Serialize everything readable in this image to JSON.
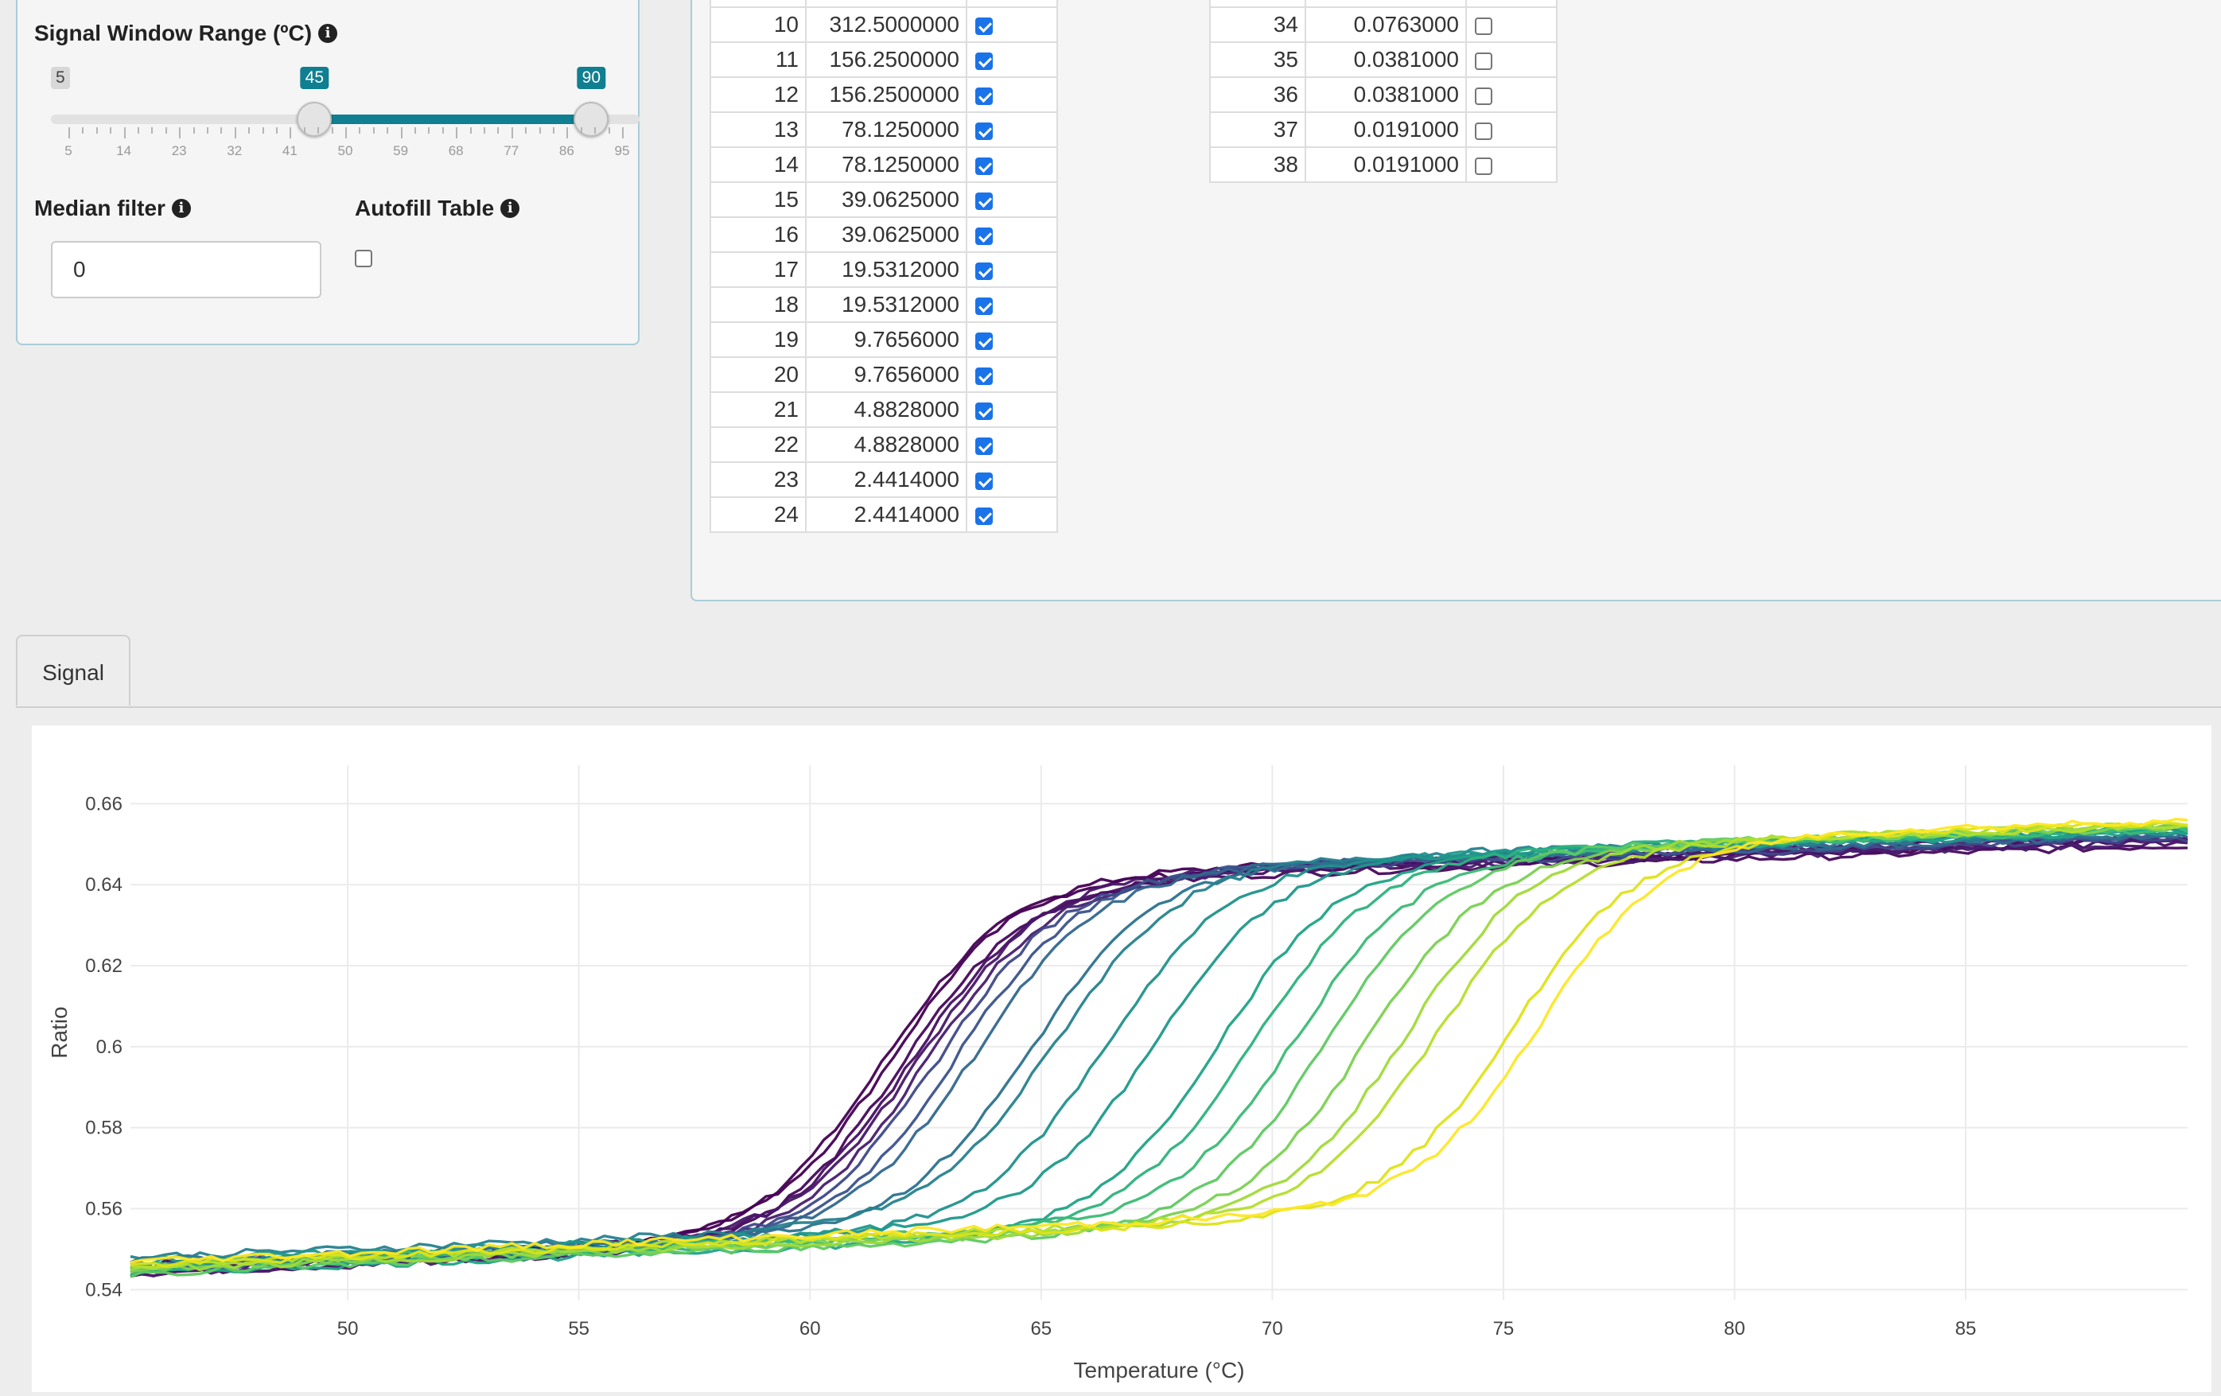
{
  "left_panel": {
    "signal_window_label": "Signal Window Range (ºC)",
    "slider": {
      "min": 5,
      "max": 95,
      "low": 45,
      "high": 90,
      "min_label": "5",
      "low_label": "45",
      "high_label": "90",
      "ticks": [
        "5",
        "14",
        "23",
        "32",
        "41",
        "50",
        "59",
        "68",
        "77",
        "86",
        "95"
      ]
    },
    "median_filter_label": "Median filter",
    "median_filter_value": "0",
    "autofill_label": "Autofill Table",
    "autofill_checked": false
  },
  "table_left": {
    "rows": [
      {
        "idx": "10",
        "val": "312.5000000",
        "checked": true
      },
      {
        "idx": "11",
        "val": "156.2500000",
        "checked": true
      },
      {
        "idx": "12",
        "val": "156.2500000",
        "checked": true
      },
      {
        "idx": "13",
        "val": "78.1250000",
        "checked": true
      },
      {
        "idx": "14",
        "val": "78.1250000",
        "checked": true
      },
      {
        "idx": "15",
        "val": "39.0625000",
        "checked": true
      },
      {
        "idx": "16",
        "val": "39.0625000",
        "checked": true
      },
      {
        "idx": "17",
        "val": "19.5312000",
        "checked": true
      },
      {
        "idx": "18",
        "val": "19.5312000",
        "checked": true
      },
      {
        "idx": "19",
        "val": "9.7656000",
        "checked": true
      },
      {
        "idx": "20",
        "val": "9.7656000",
        "checked": true
      },
      {
        "idx": "21",
        "val": "4.8828000",
        "checked": true
      },
      {
        "idx": "22",
        "val": "4.8828000",
        "checked": true
      },
      {
        "idx": "23",
        "val": "2.4414000",
        "checked": true
      },
      {
        "idx": "24",
        "val": "2.4414000",
        "checked": true
      }
    ]
  },
  "table_right": {
    "rows": [
      {
        "idx": "34",
        "val": "0.0763000",
        "checked": false
      },
      {
        "idx": "35",
        "val": "0.0381000",
        "checked": false
      },
      {
        "idx": "36",
        "val": "0.0381000",
        "checked": false
      },
      {
        "idx": "37",
        "val": "0.0191000",
        "checked": false
      },
      {
        "idx": "38",
        "val": "0.0191000",
        "checked": false
      }
    ]
  },
  "tabs": [
    "Signal"
  ],
  "chart_data": {
    "type": "line",
    "xlabel": "Temperature (°C)",
    "ylabel": "Ratio",
    "xlim": [
      45.3,
      89.8
    ],
    "ylim": [
      0.5375,
      0.6695
    ],
    "xticks": [
      50,
      55,
      60,
      65,
      70,
      75,
      80,
      85
    ],
    "yticks": [
      0.54,
      0.56,
      0.58,
      0.6,
      0.62,
      0.64,
      0.66
    ],
    "ytick_labels": [
      "0.54",
      "0.56",
      "0.58",
      "0.6",
      "0.62",
      "0.64",
      "0.66"
    ],
    "grid": true,
    "model": "sigmoid: y = low + (high - low) / (1 + exp(-(x - tm) / slope))",
    "series": [
      {
        "tm": 61.6,
        "low": 0.545,
        "high": 0.641,
        "color": "#440154"
      },
      {
        "tm": 61.8,
        "low": 0.546,
        "high": 0.642,
        "color": "#440154"
      },
      {
        "tm": 62.0,
        "low": 0.544,
        "high": 0.64,
        "color": "#46085c"
      },
      {
        "tm": 62.2,
        "low": 0.545,
        "high": 0.641,
        "color": "#471063"
      },
      {
        "tm": 62.4,
        "low": 0.546,
        "high": 0.642,
        "color": "#481769"
      },
      {
        "tm": 62.5,
        "low": 0.544,
        "high": 0.641,
        "color": "#481d6f"
      },
      {
        "tm": 62.8,
        "low": 0.545,
        "high": 0.642,
        "color": "#3e4989"
      },
      {
        "tm": 63.2,
        "low": 0.545,
        "high": 0.643,
        "color": "#3b528b"
      },
      {
        "tm": 63.6,
        "low": 0.546,
        "high": 0.643,
        "color": "#31688e"
      },
      {
        "tm": 64.8,
        "low": 0.547,
        "high": 0.644,
        "color": "#2c728e"
      },
      {
        "tm": 65.3,
        "low": 0.548,
        "high": 0.645,
        "color": "#26828e"
      },
      {
        "tm": 66.4,
        "low": 0.546,
        "high": 0.645,
        "color": "#21918c"
      },
      {
        "tm": 67.5,
        "low": 0.547,
        "high": 0.646,
        "color": "#1f988b"
      },
      {
        "tm": 68.8,
        "low": 0.544,
        "high": 0.646,
        "color": "#20a386"
      },
      {
        "tm": 69.6,
        "low": 0.545,
        "high": 0.647,
        "color": "#2db27d"
      },
      {
        "tm": 70.5,
        "low": 0.546,
        "high": 0.647,
        "color": "#3bbb75"
      },
      {
        "tm": 71.2,
        "low": 0.544,
        "high": 0.648,
        "color": "#5ec962"
      },
      {
        "tm": 72.1,
        "low": 0.545,
        "high": 0.648,
        "color": "#7ad151"
      },
      {
        "tm": 72.9,
        "low": 0.545,
        "high": 0.649,
        "color": "#a0da39"
      },
      {
        "tm": 73.6,
        "low": 0.546,
        "high": 0.649,
        "color": "#b5de2b"
      },
      {
        "tm": 75.2,
        "low": 0.546,
        "high": 0.65,
        "color": "#dde318"
      },
      {
        "tm": 75.8,
        "low": 0.547,
        "high": 0.651,
        "color": "#fde725"
      }
    ]
  }
}
